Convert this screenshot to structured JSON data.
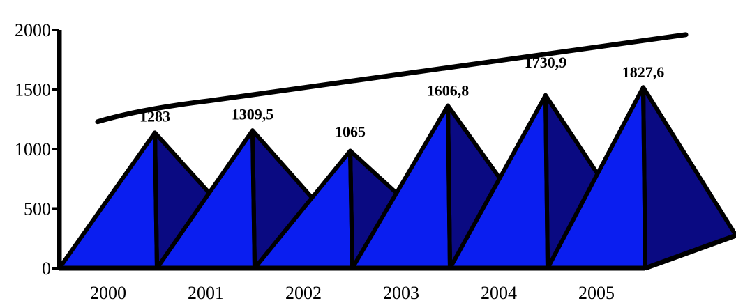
{
  "chart_data": {
    "type": "bar",
    "style": "3d-pyramid",
    "categories": [
      "2000",
      "2001",
      "2002",
      "2003",
      "2004",
      "2005"
    ],
    "values": [
      1283,
      1309.5,
      1065,
      1606.8,
      1730.9,
      1827.6
    ],
    "data_labels": [
      "1283",
      "1309,5",
      "1065",
      "1606,8",
      "1730,9",
      "1827,6"
    ],
    "ylim": [
      0,
      2000
    ],
    "yticks": [
      0,
      500,
      1000,
      1500,
      2000
    ],
    "ytick_labels": [
      "0",
      "500",
      "1000",
      "1500",
      "2000"
    ],
    "trendline": true,
    "grid": false,
    "legend": "none",
    "colors": {
      "front_face": "#0a1ef0",
      "side_face": "#0a0a82",
      "outline": "#000000",
      "trendline": "#000000"
    }
  }
}
